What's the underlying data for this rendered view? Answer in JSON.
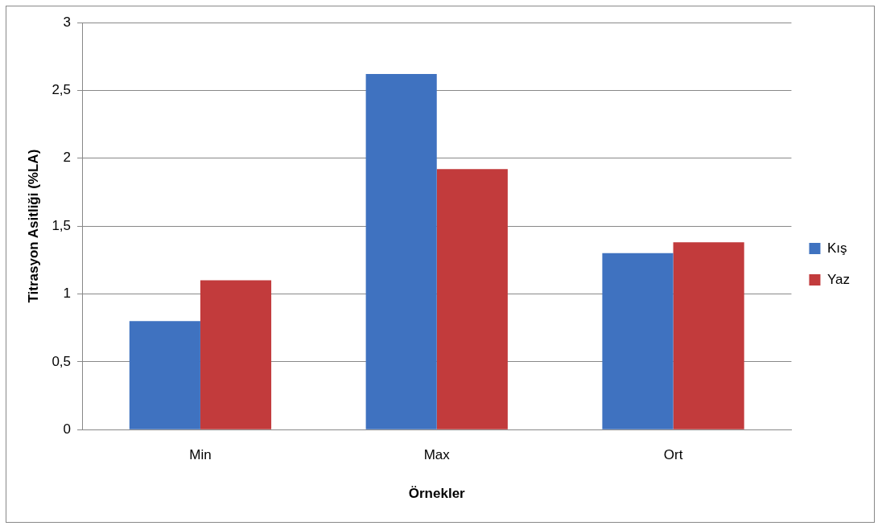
{
  "chart_data": {
    "type": "bar",
    "xlabel": "Örnekler",
    "ylabel": "Titrasyon Asitliği (%LA)",
    "categories": [
      "Min",
      "Max",
      "Ort"
    ],
    "series": [
      {
        "name": "Kış",
        "color": "#3f72c0",
        "values": [
          0.8,
          2.62,
          1.3
        ]
      },
      {
        "name": "Yaz",
        "color": "#c23b3c",
        "values": [
          1.1,
          1.92,
          1.38
        ]
      }
    ],
    "ylim": [
      0,
      3
    ],
    "yticks": [
      0,
      {
        "value": 0.5,
        "label": "0,5"
      },
      1,
      {
        "value": 1.5,
        "label": "1,5"
      },
      2,
      {
        "value": 2.5,
        "label": "2,5"
      },
      3
    ],
    "grid": "y",
    "legend": "right"
  }
}
